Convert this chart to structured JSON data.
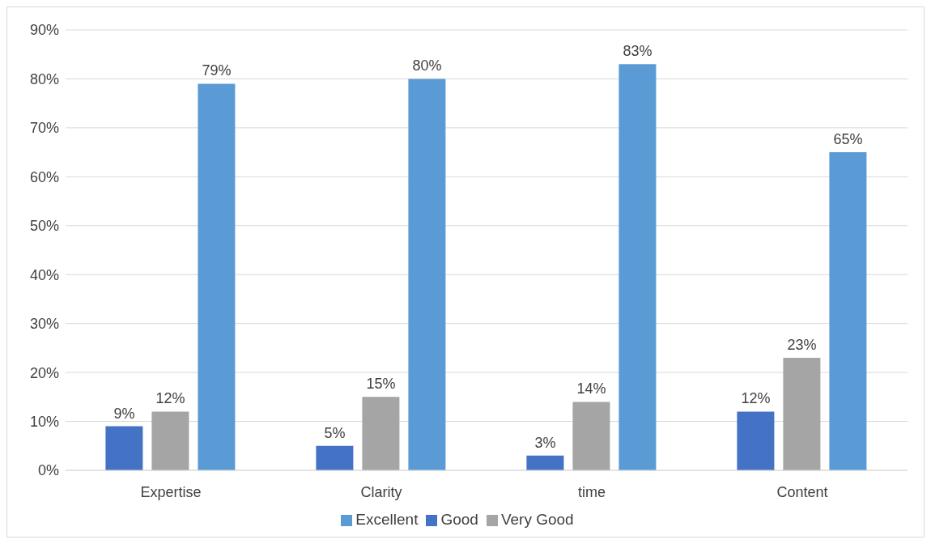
{
  "chart_data": {
    "type": "bar",
    "categories": [
      "Expertise",
      "Clarity",
      "time",
      "Content"
    ],
    "series": [
      {
        "name": "Good",
        "color": "#4472c4",
        "values": [
          9,
          5,
          3,
          12
        ],
        "value_labels": [
          "9%",
          "5%",
          "3%",
          "12%"
        ]
      },
      {
        "name": "Very Good",
        "color": "#a5a5a5",
        "values": [
          12,
          15,
          14,
          23
        ],
        "value_labels": [
          "12%",
          "15%",
          "14%",
          "23%"
        ]
      },
      {
        "name": "Excellent",
        "color": "#5b9bd5",
        "values": [
          79,
          80,
          83,
          65
        ],
        "value_labels": [
          "79%",
          "80%",
          "83%",
          "65%"
        ]
      }
    ],
    "ylim": [
      0,
      90
    ],
    "yticks": [
      {
        "value": 0,
        "label": "0%"
      },
      {
        "value": 10,
        "label": "10%"
      },
      {
        "value": 20,
        "label": "20%"
      },
      {
        "value": 30,
        "label": "30%"
      },
      {
        "value": 40,
        "label": "40%"
      },
      {
        "value": 50,
        "label": "50%"
      },
      {
        "value": 60,
        "label": "60%"
      },
      {
        "value": 70,
        "label": "70%"
      },
      {
        "value": 80,
        "label": "80%"
      },
      {
        "value": 90,
        "label": "90%"
      }
    ],
    "grid": "y",
    "legend": "bottom"
  }
}
